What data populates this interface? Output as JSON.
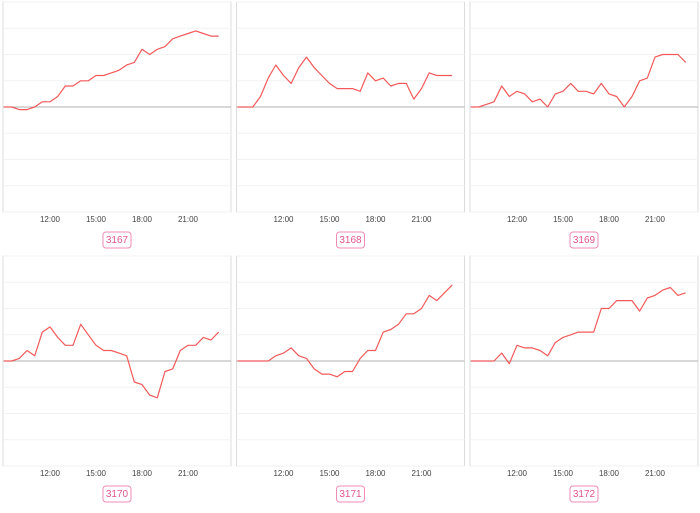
{
  "chart_data": [
    {
      "type": "line",
      "title": "3167",
      "color": "#f25a5a",
      "categories": [
        null,
        null,
        null,
        null,
        null,
        null,
        "12:00",
        null,
        null,
        null,
        null,
        null,
        "15:00",
        null,
        null,
        null,
        null,
        null,
        "18:00",
        null,
        null,
        null,
        null,
        null,
        "21:00",
        null,
        null,
        null,
        null
      ],
      "values": [
        0,
        0,
        -0.1,
        -0.1,
        0,
        0.2,
        0.2,
        0.4,
        0.8,
        0.8,
        1.0,
        1.0,
        1.2,
        1.2,
        1.3,
        1.4,
        1.6,
        1.7,
        2.2,
        2.0,
        2.2,
        2.3,
        2.6,
        2.7,
        2.8,
        2.9,
        2.8,
        2.7,
        2.7
      ],
      "ylim": [
        -4,
        4
      ],
      "yticks": [
        -4,
        -3,
        -2,
        -1,
        0,
        1,
        2,
        3,
        4
      ],
      "grid": true
    },
    {
      "type": "line",
      "title": "3168",
      "color": "#f25a5a",
      "categories": [
        null,
        null,
        null,
        null,
        null,
        null,
        "12:00",
        null,
        null,
        null,
        null,
        null,
        "15:00",
        null,
        null,
        null,
        null,
        null,
        "18:00",
        null,
        null,
        null,
        null,
        null,
        "21:00",
        null,
        null,
        null,
        null
      ],
      "values": [
        0,
        0,
        0,
        0.4,
        1.1,
        1.6,
        1.2,
        0.9,
        1.5,
        1.9,
        1.5,
        1.2,
        0.9,
        0.7,
        0.7,
        0.7,
        0.6,
        1.3,
        1.0,
        1.1,
        0.8,
        0.9,
        0.9,
        0.3,
        0.7,
        1.3,
        1.2,
        1.2,
        1.2
      ],
      "ylim": [
        -4,
        4
      ],
      "yticks": [
        -4,
        -3,
        -2,
        -1,
        0,
        1,
        2,
        3,
        4
      ],
      "grid": true
    },
    {
      "type": "line",
      "title": "3169",
      "color": "#f25a5a",
      "categories": [
        null,
        null,
        null,
        null,
        null,
        null,
        "12:00",
        null,
        null,
        null,
        null,
        null,
        "15:00",
        null,
        null,
        null,
        null,
        null,
        "18:00",
        null,
        null,
        null,
        null,
        null,
        "21:00",
        null,
        null,
        null,
        null
      ],
      "values": [
        0,
        0,
        0.1,
        0.2,
        0.8,
        0.4,
        0.6,
        0.5,
        0.2,
        0.3,
        0,
        0.5,
        0.6,
        0.9,
        0.6,
        0.6,
        0.5,
        0.9,
        0.5,
        0.4,
        0,
        0.4,
        1.0,
        1.1,
        1.9,
        2.0,
        2.0,
        2.0,
        1.7
      ],
      "ylim": [
        -4,
        4
      ],
      "yticks": [
        -4,
        -3,
        -2,
        -1,
        0,
        1,
        2,
        3,
        4
      ],
      "grid": true
    },
    {
      "type": "line",
      "title": "3170",
      "color": "#f25a5a",
      "categories": [
        null,
        null,
        null,
        null,
        null,
        null,
        "12:00",
        null,
        null,
        null,
        null,
        null,
        "15:00",
        null,
        null,
        null,
        null,
        null,
        "18:00",
        null,
        null,
        null,
        null,
        null,
        "21:00",
        null,
        null,
        null,
        null
      ],
      "values": [
        0,
        0,
        0.1,
        0.4,
        0.2,
        1.1,
        1.3,
        0.9,
        0.6,
        0.6,
        1.4,
        1.0,
        0.6,
        0.4,
        0.4,
        0.3,
        0.2,
        -0.8,
        -0.9,
        -1.3,
        -1.4,
        -0.4,
        -0.3,
        0.4,
        0.6,
        0.6,
        0.9,
        0.8,
        1.1
      ],
      "ylim": [
        -4,
        4
      ],
      "yticks": [
        -4,
        -3,
        -2,
        -1,
        0,
        1,
        2,
        3,
        4
      ],
      "grid": true
    },
    {
      "type": "line",
      "title": "3171",
      "color": "#f25a5a",
      "categories": [
        null,
        null,
        null,
        null,
        null,
        null,
        "12:00",
        null,
        null,
        null,
        null,
        null,
        "15:00",
        null,
        null,
        null,
        null,
        null,
        "18:00",
        null,
        null,
        null,
        null,
        null,
        "21:00",
        null,
        null,
        null,
        null
      ],
      "values": [
        0,
        0,
        0,
        0,
        0,
        0.2,
        0.3,
        0.5,
        0.2,
        0.1,
        -0.3,
        -0.5,
        -0.5,
        -0.6,
        -0.4,
        -0.4,
        0.1,
        0.4,
        0.4,
        1.1,
        1.2,
        1.4,
        1.8,
        1.8,
        2.0,
        2.5,
        2.3,
        2.6,
        2.9
      ],
      "ylim": [
        -4,
        4
      ],
      "yticks": [
        -4,
        -3,
        -2,
        -1,
        0,
        1,
        2,
        3,
        4
      ],
      "grid": true
    },
    {
      "type": "line",
      "title": "3172",
      "color": "#f25a5a",
      "categories": [
        null,
        null,
        null,
        null,
        null,
        null,
        "12:00",
        null,
        null,
        null,
        null,
        null,
        "15:00",
        null,
        null,
        null,
        null,
        null,
        "18:00",
        null,
        null,
        null,
        null,
        null,
        "21:00",
        null,
        null,
        null,
        null
      ],
      "values": [
        0,
        0,
        0,
        0,
        0.3,
        -0.1,
        0.6,
        0.5,
        0.5,
        0.4,
        0.2,
        0.7,
        0.9,
        1.0,
        1.1,
        1.1,
        1.1,
        2.0,
        2.0,
        2.3,
        2.3,
        2.3,
        1.9,
        2.4,
        2.5,
        2.7,
        2.8,
        2.5,
        2.6
      ],
      "ylim": [
        -4,
        4
      ],
      "yticks": [
        -4,
        -3,
        -2,
        -1,
        0,
        1,
        2,
        3,
        4
      ],
      "grid": true
    }
  ]
}
